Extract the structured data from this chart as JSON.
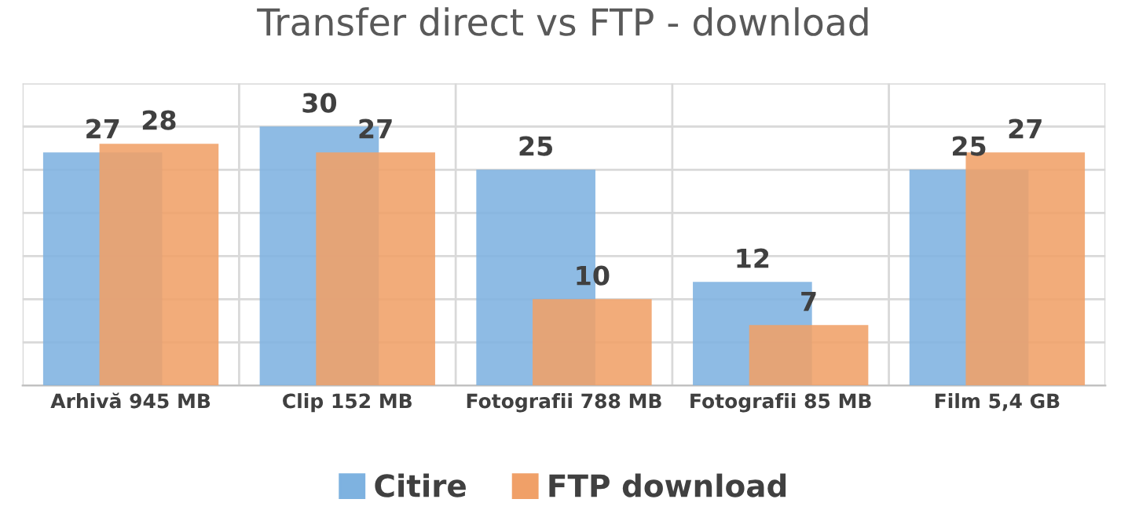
{
  "chart_data": {
    "type": "bar",
    "title": "Transfer direct vs FTP - download",
    "categories": [
      "Arhivă 945 MB",
      "Clip 152 MB",
      "Fotografii 788 MB",
      "Fotografii 85 MB",
      "Film 5,4 GB"
    ],
    "series": [
      {
        "name": "Citire",
        "color": "#7eb2e0",
        "values": [
          27,
          30,
          25,
          12,
          25
        ]
      },
      {
        "name": "FTP download",
        "color": "#f0a068",
        "values": [
          28,
          27,
          10,
          7,
          27
        ]
      }
    ],
    "ylim": [
      0,
      35
    ],
    "yticks": [
      {
        "value": 0,
        "label": null
      },
      {
        "value": 5,
        "label": null
      },
      {
        "value": 10,
        "label": null
      },
      {
        "value": 15,
        "label": null
      },
      {
        "value": 20,
        "label": null
      },
      {
        "value": 25,
        "label": null
      },
      {
        "value": 30,
        "label": null
      },
      {
        "value": 35,
        "label": null
      }
    ],
    "tick_labels": "x",
    "grid": true,
    "legend": "bottom",
    "data_labels": true
  }
}
